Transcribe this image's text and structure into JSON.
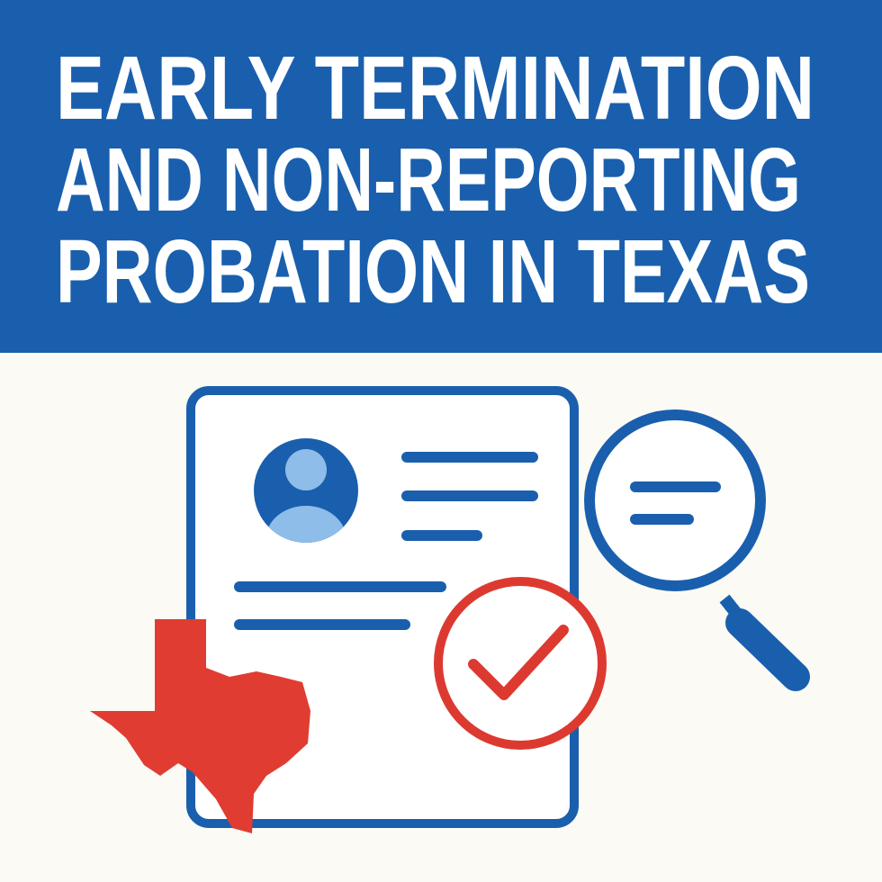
{
  "header": {
    "title_lines": [
      "EARLY TERMINATION",
      "AND NON-REPORTING",
      "PROBATION IN TEXAS"
    ]
  }
}
